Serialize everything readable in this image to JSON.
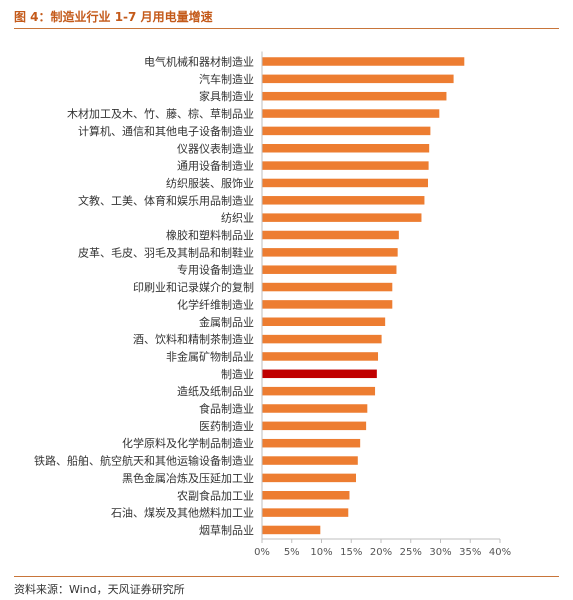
{
  "figure": {
    "title": "图 4：制造业行业 1-7 月用电量增速",
    "source": "资料来源：Wind，天风证券研究所"
  },
  "colors": {
    "bar": "#ed7d31",
    "highlight": "#c00000",
    "axis": "#bfbfbf",
    "title": "#c45a1a"
  },
  "chart_data": {
    "type": "bar",
    "orientation": "horizontal",
    "title": "",
    "xlabel": "",
    "ylabel": "",
    "xlim": [
      0,
      40
    ],
    "ticks": [
      0,
      5,
      10,
      15,
      20,
      25,
      30,
      35,
      40
    ],
    "tick_labels": [
      "0%",
      "5%",
      "10%",
      "15%",
      "20%",
      "25%",
      "30%",
      "35%",
      "40%"
    ],
    "grid": false,
    "legend": "none",
    "highlight_category": "制造业",
    "categories": [
      "电气机械和器材制造业",
      "汽车制造业",
      "家具制造业",
      "木材加工及木、竹、藤、棕、草制品业",
      "计算机、通信和其他电子设备制造业",
      "仪器仪表制造业",
      "通用设备制造业",
      "纺织服装、服饰业",
      "文教、工美、体育和娱乐用品制造业",
      "纺织业",
      "橡胶和塑料制品业",
      "皮革、毛皮、羽毛及其制品和制鞋业",
      "专用设备制造业",
      "印刷业和记录媒介的复制",
      "化学纤维制造业",
      "金属制品业",
      "酒、饮料和精制茶制造业",
      "非金属矿物制品业",
      "制造业",
      "造纸及纸制品业",
      "食品制造业",
      "医药制造业",
      "化学原料及化学制品制造业",
      "铁路、船舶、航空航天和其他运输设备制造业",
      "黑色金属冶炼及压延加工业",
      "农副食品加工业",
      "石油、煤炭及其他燃料加工业",
      "烟草制品业"
    ],
    "values": [
      34.0,
      32.2,
      31.0,
      29.8,
      28.3,
      28.1,
      28.0,
      27.9,
      27.3,
      26.8,
      23.0,
      22.8,
      22.6,
      21.9,
      21.9,
      20.7,
      20.1,
      19.5,
      19.3,
      19.0,
      17.7,
      17.5,
      16.5,
      16.1,
      15.8,
      14.7,
      14.5,
      9.8
    ]
  }
}
